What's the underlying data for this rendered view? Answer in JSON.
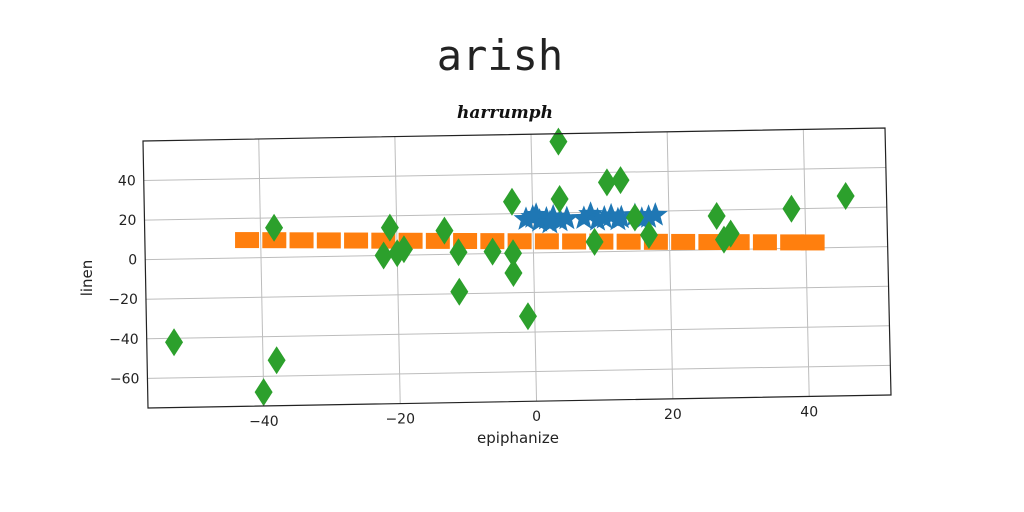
{
  "chart_data": {
    "type": "scatter",
    "suptitle": "arish",
    "title": "harrumph",
    "xlabel": "epiphanize",
    "ylabel": "linen",
    "xlim": [
      -57,
      52
    ],
    "ylim": [
      -75,
      60
    ],
    "xticks": [
      -40,
      -20,
      0,
      20,
      40
    ],
    "yticks": [
      -60,
      -40,
      -20,
      0,
      20,
      40
    ],
    "xtick_labels": [
      "−40",
      "−20",
      "0",
      "20",
      "40"
    ],
    "ytick_labels": [
      "−60",
      "−40",
      "−20",
      "0",
      "20",
      "40"
    ],
    "grid": true,
    "series": [
      {
        "marker": "star",
        "color": "#1f77b4",
        "points": [
          [
            -1,
            17
          ],
          [
            0,
            18
          ],
          [
            1,
            16
          ],
          [
            2,
            17
          ],
          [
            3,
            18
          ],
          [
            4,
            16
          ],
          [
            5,
            17
          ],
          [
            0.5,
            19
          ],
          [
            2.5,
            15
          ],
          [
            7.5,
            17
          ],
          [
            8.5,
            19
          ],
          [
            9.5,
            16
          ],
          [
            10.5,
            17
          ],
          [
            11.5,
            18
          ],
          [
            12.5,
            16
          ],
          [
            13,
            17
          ],
          [
            15,
            18
          ],
          [
            16,
            16
          ],
          [
            17,
            17
          ],
          [
            18,
            18
          ]
        ]
      },
      {
        "marker": "square",
        "color": "#ff7f0e",
        "points": [
          [
            -42,
            9
          ],
          [
            -38,
            8.7
          ],
          [
            -34,
            8.4
          ],
          [
            -30,
            8.1
          ],
          [
            -26,
            7.8
          ],
          [
            -22,
            7.5
          ],
          [
            -18,
            7.2
          ],
          [
            -14,
            6.9
          ],
          [
            -10,
            6.6
          ],
          [
            -6,
            6.3
          ],
          [
            -2,
            6.0
          ],
          [
            2,
            5.7
          ],
          [
            6,
            5.4
          ],
          [
            10,
            5.1
          ],
          [
            14,
            4.8
          ],
          [
            18,
            4.5
          ],
          [
            22,
            4.2
          ],
          [
            26,
            3.9
          ],
          [
            30,
            3.6
          ],
          [
            34,
            3.3
          ],
          [
            38,
            3.0
          ],
          [
            41,
            2.8
          ]
        ]
      },
      {
        "marker": "diamond",
        "color": "#2ca02c",
        "points": [
          [
            -53,
            -42
          ],
          [
            -40,
            -68
          ],
          [
            -38,
            15
          ],
          [
            -38,
            -52
          ],
          [
            -22,
            0
          ],
          [
            -21,
            14
          ],
          [
            -20,
            1
          ],
          [
            -19,
            3
          ],
          [
            -13,
            12
          ],
          [
            -11,
            1
          ],
          [
            -11,
            -19
          ],
          [
            -6,
            1
          ],
          [
            -3,
            26
          ],
          [
            -3,
            0
          ],
          [
            -3,
            -10
          ],
          [
            -1,
            -32
          ],
          [
            4,
            56
          ],
          [
            4,
            27
          ],
          [
            9,
            5
          ],
          [
            11,
            35
          ],
          [
            13,
            36
          ],
          [
            15,
            17
          ],
          [
            17,
            8
          ],
          [
            27,
            17
          ],
          [
            28,
            5
          ],
          [
            29,
            8
          ],
          [
            38,
            20
          ],
          [
            46,
            26
          ]
        ]
      }
    ]
  }
}
